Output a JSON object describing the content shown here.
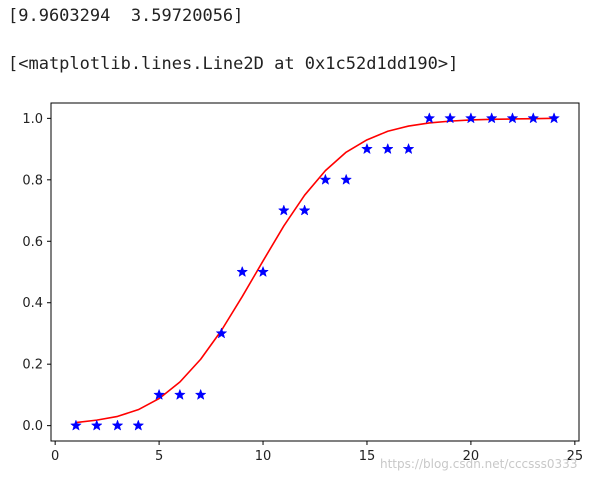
{
  "output_lines": {
    "params": "[9.9603294  3.59720056]",
    "repr": "[<matplotlib.lines.Line2D at 0x1c52d1dd190>]"
  },
  "watermark": "https://blog.csdn.net/cccsss0333",
  "chart_data": {
    "type": "scatter",
    "xlim": [
      -0.2,
      25.2
    ],
    "ylim": [
      -0.05,
      1.05
    ],
    "xticks": [
      0,
      5,
      10,
      15,
      20,
      25
    ],
    "yticks": [
      0.0,
      0.2,
      0.4,
      0.6,
      0.8,
      1.0
    ],
    "xtick_labels": [
      "0",
      "5",
      "10",
      "15",
      "20",
      "25"
    ],
    "ytick_labels": [
      "0.0",
      "0.2",
      "0.4",
      "0.6",
      "0.8",
      "1.0"
    ],
    "grid": false,
    "series": [
      {
        "kind": "scatter",
        "marker": "star",
        "color": "#0000ff",
        "x": [
          1,
          2,
          3,
          4,
          5,
          6,
          7,
          8,
          9,
          10,
          11,
          12,
          13,
          14,
          15,
          16,
          17,
          18,
          19,
          20,
          21,
          22,
          23,
          24
        ],
        "y": [
          0.0,
          0.0,
          0.0,
          0.0,
          0.1,
          0.1,
          0.1,
          0.3,
          0.5,
          0.5,
          0.7,
          0.7,
          0.8,
          0.8,
          0.9,
          0.9,
          0.9,
          1.0,
          1.0,
          1.0,
          1.0,
          1.0,
          1.0,
          1.0
        ]
      },
      {
        "kind": "line",
        "color": "#ff0000",
        "x": [
          1,
          2,
          3,
          4,
          5,
          6,
          7,
          8,
          9,
          10,
          11,
          12,
          13,
          14,
          15,
          16,
          17,
          18,
          19,
          20,
          21,
          22,
          23,
          24
        ],
        "y": [
          0.01,
          0.018,
          0.03,
          0.052,
          0.088,
          0.142,
          0.216,
          0.31,
          0.42,
          0.536,
          0.65,
          0.75,
          0.83,
          0.89,
          0.93,
          0.958,
          0.975,
          0.985,
          0.991,
          0.995,
          0.997,
          0.998,
          0.999,
          1.0
        ]
      }
    ]
  }
}
